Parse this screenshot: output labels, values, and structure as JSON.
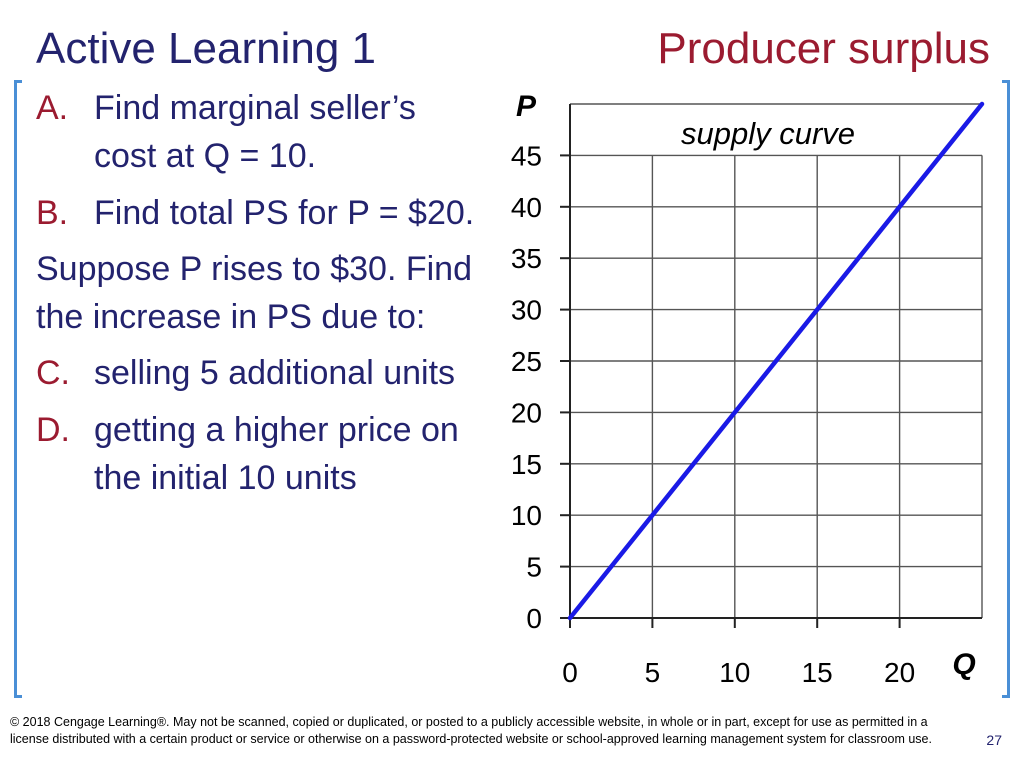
{
  "slide": {
    "title_left": "Active Learning 1",
    "title_right": "Producer surplus",
    "slide_number": "27",
    "footer": "© 2018 Cengage Learning®. May not be scanned, copied or duplicated, or posted to a publicly accessible website, in whole or in part, except for use as permitted in a license distributed with a certain product or service or otherwise on a password-protected website or school-approved learning management system for classroom use."
  },
  "questions": {
    "a_letter": "A.",
    "a_text": "Find marginal seller’s cost at Q = 10.",
    "b_letter": "B.",
    "b_text": "Find total PS for P = $20.",
    "intro": "Suppose P rises to $30. Find the increase in PS due to:",
    "c_letter": "C.",
    "c_text": "selling 5 additional units",
    "d_letter": "D.",
    "d_text": "getting a higher price on the initial 10 units"
  },
  "colors": {
    "title_blue": "#23236e",
    "title_red": "#9b1b30",
    "supply_line": "#1a1ae6",
    "bracket": "#4a8fd6",
    "grid": "#555555"
  },
  "chart_data": {
    "type": "line",
    "title": "",
    "xlabel": "Q",
    "ylabel": "P",
    "xlim": [
      0,
      25
    ],
    "ylim": [
      0,
      50
    ],
    "x_ticks": [
      0,
      5,
      10,
      15,
      20
    ],
    "y_ticks": [
      0,
      5,
      10,
      15,
      20,
      25,
      30,
      35,
      40,
      45
    ],
    "grid": true,
    "series": [
      {
        "name": "supply curve",
        "x": [
          0,
          25
        ],
        "y": [
          0,
          50
        ]
      }
    ]
  }
}
